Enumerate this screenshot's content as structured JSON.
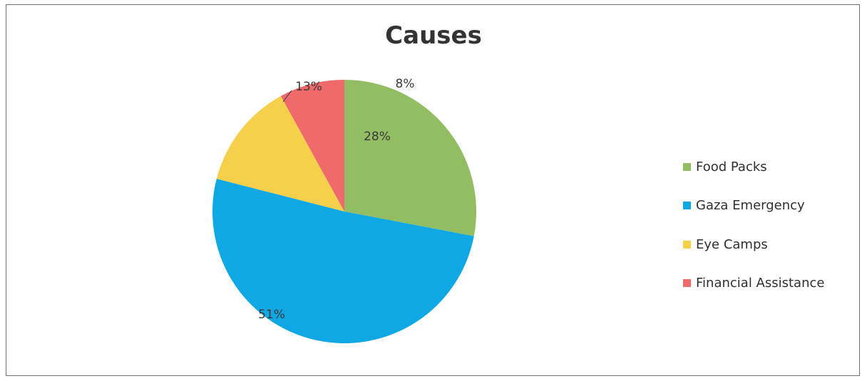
{
  "chart_data": {
    "type": "pie",
    "title": "Causes",
    "slices": [
      {
        "name": "Food Packs",
        "value": 28,
        "label": "28%",
        "color": "#92bd63"
      },
      {
        "name": "Gaza Emergency",
        "value": 51,
        "label": "51%",
        "color": "#0fa8e4"
      },
      {
        "name": "Eye Camps",
        "value": 13,
        "label": "13%",
        "color": "#f6cf4b"
      },
      {
        "name": "Financial Assistance",
        "value": 8,
        "label": "8%",
        "color": "#ee6a6b"
      }
    ],
    "legend_position": "right"
  }
}
